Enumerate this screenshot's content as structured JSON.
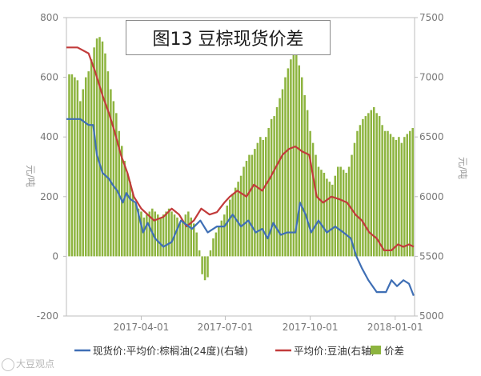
{
  "chart_data": {
    "type": "bar+line",
    "title": "图13 豆棕现货价差",
    "y_left_label": "元/吨",
    "y_right_label": "元/吨",
    "y_left_range": [
      -200,
      800
    ],
    "y_left_ticks": [
      "800",
      "600",
      "400",
      "200",
      "0",
      "-200"
    ],
    "y_right_range": [
      5000,
      7500
    ],
    "y_right_ticks": [
      "7500",
      "7000",
      "6500",
      "6000",
      "5500",
      "5000"
    ],
    "x_range": [
      "2017-01-10",
      "2018-01-22"
    ],
    "x_ticks": [
      "2017-04-01",
      "2017-07-01",
      "2017-10-01",
      "2018-01-01"
    ],
    "grid": false,
    "legend_position": "bottom",
    "series": [
      {
        "name": "现货价:平均价:棕榈油(24度)(右轴)",
        "type": "line",
        "axis": "right",
        "color": "#3f6fb5",
        "x": [
          "2017-01-10",
          "2017-01-25",
          "2017-02-03",
          "2017-02-08",
          "2017-02-12",
          "2017-02-18",
          "2017-02-25",
          "2017-03-01",
          "2017-03-06",
          "2017-03-12",
          "2017-03-16",
          "2017-03-20",
          "2017-03-26",
          "2017-04-03",
          "2017-04-08",
          "2017-04-16",
          "2017-04-25",
          "2017-05-04",
          "2017-05-14",
          "2017-05-26",
          "2017-06-04",
          "2017-06-12",
          "2017-06-22",
          "2017-06-30",
          "2017-07-09",
          "2017-07-18",
          "2017-07-26",
          "2017-08-03",
          "2017-08-10",
          "2017-08-16",
          "2017-08-22",
          "2017-08-30",
          "2017-09-06",
          "2017-09-15",
          "2017-09-20",
          "2017-09-26",
          "2017-10-02",
          "2017-10-10",
          "2017-10-19",
          "2017-10-28",
          "2017-11-06",
          "2017-11-14",
          "2017-11-20",
          "2017-11-26",
          "2017-12-03",
          "2017-12-12",
          "2017-12-22",
          "2017-12-28",
          "2018-01-03",
          "2018-01-10",
          "2018-01-16",
          "2018-01-21"
        ],
        "y": [
          6650,
          6650,
          6600,
          6600,
          6350,
          6200,
          6150,
          6100,
          6050,
          5950,
          6030,
          5980,
          5950,
          5700,
          5780,
          5650,
          5580,
          5620,
          5800,
          5730,
          5800,
          5700,
          5750,
          5750,
          5850,
          5750,
          5800,
          5700,
          5730,
          5650,
          5780,
          5680,
          5700,
          5700,
          5950,
          5850,
          5700,
          5800,
          5700,
          5750,
          5700,
          5650,
          5500,
          5400,
          5300,
          5200,
          5200,
          5300,
          5250,
          5300,
          5270,
          5170
        ]
      },
      {
        "name": "平均价:豆油(右轴)",
        "type": "line",
        "axis": "right",
        "color": "#c23b3b",
        "x": [
          "2017-01-10",
          "2017-01-22",
          "2017-02-03",
          "2017-02-10",
          "2017-02-18",
          "2017-02-25",
          "2017-03-03",
          "2017-03-10",
          "2017-03-17",
          "2017-03-24",
          "2017-04-01",
          "2017-04-08",
          "2017-04-15",
          "2017-04-25",
          "2017-05-04",
          "2017-05-12",
          "2017-05-20",
          "2017-05-28",
          "2017-06-05",
          "2017-06-14",
          "2017-06-22",
          "2017-06-30",
          "2017-07-06",
          "2017-07-14",
          "2017-07-24",
          "2017-08-01",
          "2017-08-10",
          "2017-08-18",
          "2017-08-25",
          "2017-09-01",
          "2017-09-08",
          "2017-09-15",
          "2017-09-22",
          "2017-09-30",
          "2017-10-08",
          "2017-10-15",
          "2017-10-24",
          "2017-11-01",
          "2017-11-10",
          "2017-11-19",
          "2017-11-26",
          "2017-12-04",
          "2017-12-12",
          "2017-12-20",
          "2017-12-28",
          "2018-01-04",
          "2018-01-10",
          "2018-01-16",
          "2018-01-21"
        ],
        "y": [
          7250,
          7250,
          7200,
          7050,
          6850,
          6700,
          6550,
          6350,
          6200,
          6000,
          5900,
          5850,
          5800,
          5830,
          5900,
          5850,
          5750,
          5800,
          5900,
          5850,
          5870,
          5950,
          6000,
          6050,
          6000,
          6100,
          6050,
          6150,
          6250,
          6350,
          6400,
          6420,
          6380,
          6350,
          6000,
          5950,
          6000,
          5980,
          5950,
          5850,
          5800,
          5700,
          5650,
          5550,
          5550,
          5600,
          5580,
          5600,
          5580
        ]
      },
      {
        "name": "价差",
        "type": "bar",
        "axis": "left",
        "color": "#8db43f",
        "x": [
          "2017-01-13",
          "2017-01-16",
          "2017-01-19",
          "2017-01-22",
          "2017-01-25",
          "2017-01-28",
          "2017-01-31",
          "2017-02-03",
          "2017-02-06",
          "2017-02-09",
          "2017-02-12",
          "2017-02-15",
          "2017-02-18",
          "2017-02-21",
          "2017-02-24",
          "2017-02-27",
          "2017-03-02",
          "2017-03-05",
          "2017-03-08",
          "2017-03-11",
          "2017-03-14",
          "2017-03-17",
          "2017-03-20",
          "2017-03-23",
          "2017-03-26",
          "2017-03-29",
          "2017-04-01",
          "2017-04-04",
          "2017-04-07",
          "2017-04-10",
          "2017-04-13",
          "2017-04-16",
          "2017-04-19",
          "2017-04-22",
          "2017-04-25",
          "2017-04-28",
          "2017-05-01",
          "2017-05-04",
          "2017-05-07",
          "2017-05-10",
          "2017-05-13",
          "2017-05-16",
          "2017-05-19",
          "2017-05-22",
          "2017-05-25",
          "2017-05-28",
          "2017-05-31",
          "2017-06-03",
          "2017-06-06",
          "2017-06-09",
          "2017-06-12",
          "2017-06-15",
          "2017-06-18",
          "2017-06-21",
          "2017-06-24",
          "2017-06-27",
          "2017-06-30",
          "2017-07-03",
          "2017-07-06",
          "2017-07-09",
          "2017-07-12",
          "2017-07-15",
          "2017-07-18",
          "2017-07-21",
          "2017-07-24",
          "2017-07-27",
          "2017-07-30",
          "2017-08-02",
          "2017-08-05",
          "2017-08-08",
          "2017-08-11",
          "2017-08-14",
          "2017-08-17",
          "2017-08-20",
          "2017-08-23",
          "2017-08-26",
          "2017-08-29",
          "2017-09-01",
          "2017-09-04",
          "2017-09-07",
          "2017-09-10",
          "2017-09-13",
          "2017-09-16",
          "2017-09-19",
          "2017-09-22",
          "2017-09-25",
          "2017-09-28",
          "2017-10-01",
          "2017-10-04",
          "2017-10-07",
          "2017-10-10",
          "2017-10-13",
          "2017-10-16",
          "2017-10-19",
          "2017-10-22",
          "2017-10-25",
          "2017-10-28",
          "2017-10-31",
          "2017-11-03",
          "2017-11-06",
          "2017-11-09",
          "2017-11-12",
          "2017-11-15",
          "2017-11-18",
          "2017-11-21",
          "2017-11-24",
          "2017-11-27",
          "2017-11-30",
          "2017-12-03",
          "2017-12-06",
          "2017-12-09",
          "2017-12-12",
          "2017-12-15",
          "2017-12-18",
          "2017-12-21",
          "2017-12-24",
          "2017-12-27",
          "2017-12-30",
          "2018-01-02",
          "2018-01-05",
          "2018-01-08",
          "2018-01-11",
          "2018-01-14",
          "2018-01-17",
          "2018-01-20"
        ],
        "y": [
          610,
          610,
          600,
          590,
          520,
          560,
          600,
          620,
          660,
          700,
          730,
          735,
          720,
          680,
          620,
          560,
          520,
          480,
          420,
          370,
          320,
          280,
          250,
          210,
          180,
          160,
          150,
          130,
          140,
          150,
          160,
          150,
          140,
          130,
          140,
          150,
          160,
          150,
          140,
          130,
          110,
          120,
          140,
          150,
          130,
          110,
          80,
          20,
          -60,
          -80,
          -70,
          20,
          60,
          80,
          100,
          120,
          140,
          170,
          190,
          210,
          230,
          250,
          270,
          300,
          320,
          340,
          340,
          360,
          380,
          400,
          390,
          400,
          430,
          460,
          470,
          500,
          530,
          560,
          600,
          630,
          660,
          690,
          680,
          640,
          600,
          540,
          490,
          420,
          380,
          340,
          300,
          290,
          280,
          260,
          250,
          240,
          270,
          300,
          300,
          290,
          280,
          300,
          340,
          380,
          420,
          440,
          460,
          470,
          480,
          490,
          500,
          480,
          470,
          440,
          420,
          420,
          410,
          400,
          390,
          400,
          380,
          400,
          410,
          420,
          430
        ]
      }
    ]
  },
  "watermark": {
    "text": "大豆观点",
    "icon": "weibo-logo-icon"
  }
}
